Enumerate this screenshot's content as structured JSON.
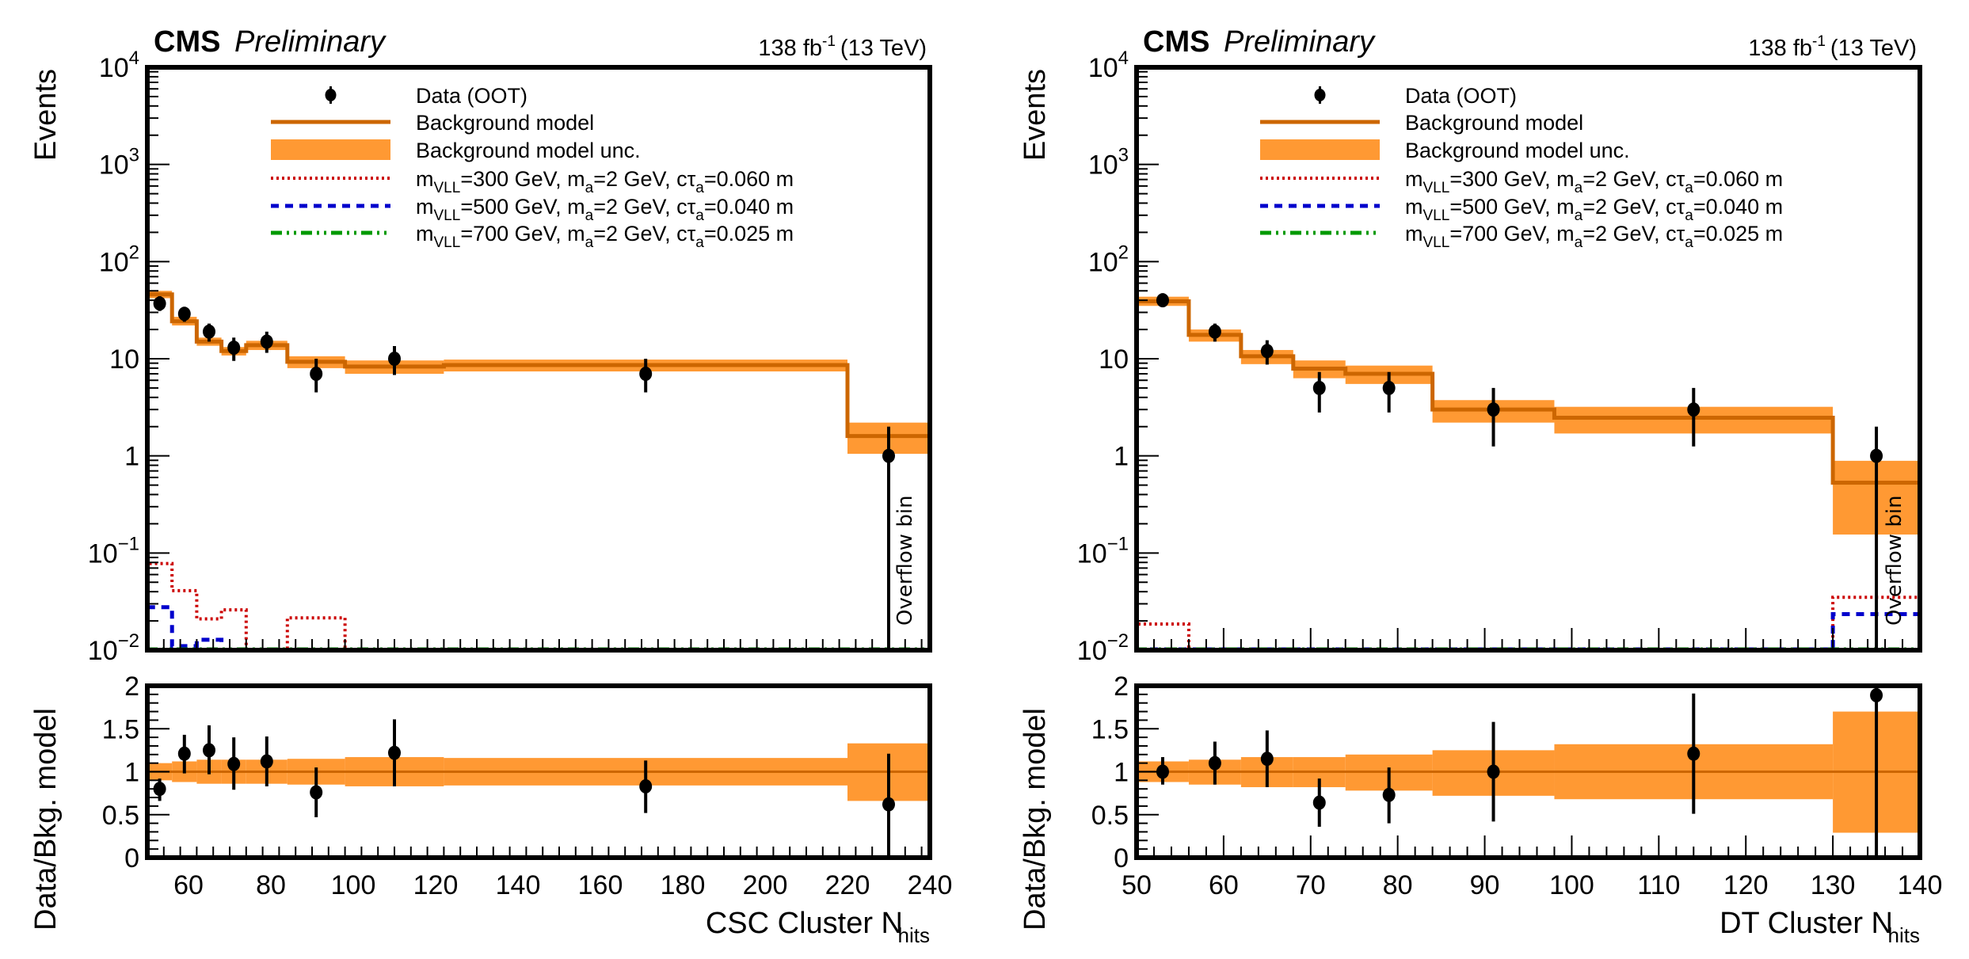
{
  "colors": {
    "background_line": "#cc6600",
    "background_band": "#ff9933",
    "data": "#000000",
    "signal_300": "#cc0000",
    "signal_500": "#0000cc",
    "signal_700": "#009900"
  },
  "chart_data": [
    {
      "type": "bar",
      "panel": "left",
      "experiment_label": "CMS",
      "status_label": "Preliminary",
      "lumi_label": "138 fb",
      "lumi_superscript": "-1",
      "energy_label": "(13 TeV)",
      "ylabel": "Events",
      "ratio_ylabel": "Data/Bkg. model",
      "xlabel": "CSC Cluster N",
      "xlabel_subscript": "hits",
      "xlim": [
        50,
        240
      ],
      "ylim": [
        0.01,
        10000
      ],
      "yscale": "log",
      "ratio_ylim": [
        0,
        2
      ],
      "x_ticks": [
        60,
        80,
        100,
        120,
        140,
        160,
        180,
        200,
        220,
        240
      ],
      "x_minor_step": 4,
      "ratio_y_ticks": [
        "0",
        "0.5",
        "1",
        "1.5",
        "2"
      ],
      "y_tick_labels": [
        {
          "value": 10000,
          "base": "10",
          "exp": "4"
        },
        {
          "value": 1000,
          "base": "10",
          "exp": "3"
        },
        {
          "value": 100,
          "base": "10",
          "exp": "2"
        },
        {
          "value": 10,
          "base": "10",
          "exp": ""
        },
        {
          "value": 1,
          "base": "1",
          "exp": ""
        },
        {
          "value": 0.1,
          "base": "10",
          "exp": "−1"
        },
        {
          "value": 0.01,
          "base": "10",
          "exp": "−2"
        }
      ],
      "overflow_label": "Overflow bin",
      "bin_edges": [
        50,
        56,
        62,
        68,
        74,
        84,
        98,
        122,
        220,
        240
      ],
      "background": [
        46,
        24.3,
        15,
        12,
        13.8,
        9.3,
        8.3,
        8.6,
        1.6
      ],
      "background_unc_low": [
        42,
        22,
        13.6,
        10.8,
        12.3,
        8.0,
        7.0,
        7.4,
        1.05
      ],
      "background_unc_high": [
        50,
        27,
        16.5,
        13.2,
        15.3,
        10.6,
        9.6,
        9.8,
        2.2
      ],
      "data": {
        "x": [
          53,
          59,
          65,
          71,
          79,
          91,
          110,
          171,
          230
        ],
        "y": [
          37,
          29,
          19,
          13,
          15,
          7,
          10,
          7,
          1
        ],
        "err_low": [
          31,
          24,
          15,
          9.5,
          11.5,
          4.5,
          6.8,
          4.5,
          0.01
        ],
        "err_high": [
          44,
          34,
          23,
          16.5,
          19,
          10,
          13.5,
          10,
          2
        ]
      },
      "ratio": {
        "band_low": [
          0.9,
          0.88,
          0.86,
          0.86,
          0.86,
          0.85,
          0.83,
          0.84,
          0.66
        ],
        "band_high": [
          1.1,
          1.12,
          1.14,
          1.14,
          1.14,
          1.15,
          1.17,
          1.16,
          1.33
        ],
        "x": [
          53,
          59,
          65,
          71,
          79,
          91,
          110,
          171,
          230
        ],
        "y": [
          0.8,
          1.21,
          1.25,
          1.09,
          1.12,
          0.76,
          1.22,
          0.83,
          0.62
        ],
        "err_low": [
          0.66,
          0.98,
          0.97,
          0.79,
          0.83,
          0.47,
          0.83,
          0.52,
          0.0
        ],
        "err_high": [
          0.92,
          1.43,
          1.54,
          1.4,
          1.41,
          1.05,
          1.61,
          1.13,
          1.21
        ]
      },
      "signals": [
        {
          "name": "300",
          "values": [
            0.078,
            0.041,
            0.021,
            0.026,
            0.01,
            0.0215,
            0.01,
            0.01,
            0.01
          ]
        },
        {
          "name": "500",
          "values": [
            0.0277,
            0.011,
            0.0128,
            0.01,
            0.01,
            0.01,
            0.01,
            0.01,
            0.01
          ]
        },
        {
          "name": "700",
          "values": [
            0.0102,
            0.0102,
            0.0102,
            0.0102,
            0.0102,
            0.0102,
            0.0102,
            0.0102,
            0.0102
          ]
        }
      ],
      "legend_position": "top-right"
    },
    {
      "type": "bar",
      "panel": "right",
      "experiment_label": "CMS",
      "status_label": "Preliminary",
      "lumi_label": "138 fb",
      "lumi_superscript": "-1",
      "energy_label": "(13 TeV)",
      "ylabel": "Events",
      "ratio_ylabel": "Data/Bkg. model",
      "xlabel": "DT Cluster N",
      "xlabel_subscript": "hits",
      "xlim": [
        50,
        140
      ],
      "ylim": [
        0.01,
        10000
      ],
      "yscale": "log",
      "ratio_ylim": [
        0,
        2
      ],
      "x_ticks": [
        50,
        60,
        70,
        80,
        90,
        100,
        110,
        120,
        130,
        140
      ],
      "x_minor_step": 2,
      "ratio_y_ticks": [
        "0",
        "0.5",
        "1",
        "1.5",
        "2"
      ],
      "y_tick_labels": [
        {
          "value": 10000,
          "base": "10",
          "exp": "4"
        },
        {
          "value": 1000,
          "base": "10",
          "exp": "3"
        },
        {
          "value": 100,
          "base": "10",
          "exp": "2"
        },
        {
          "value": 10,
          "base": "10",
          "exp": ""
        },
        {
          "value": 1,
          "base": "1",
          "exp": ""
        },
        {
          "value": 0.1,
          "base": "10",
          "exp": "−1"
        },
        {
          "value": 0.01,
          "base": "10",
          "exp": "−2"
        }
      ],
      "overflow_label": "Overflow bin",
      "bin_edges": [
        50,
        56,
        62,
        68,
        74,
        84,
        98,
        130,
        140
      ],
      "background": [
        39,
        17.6,
        10.6,
        7.9,
        7.0,
        3.0,
        2.47,
        0.53
      ],
      "background_unc_low": [
        35,
        15,
        8.8,
        6.3,
        5.5,
        2.2,
        1.7,
        0.155
      ],
      "background_unc_high": [
        43.5,
        20,
        12.3,
        9.6,
        8.5,
        3.75,
        3.2,
        0.89
      ],
      "data": {
        "x": [
          53,
          59,
          65,
          71,
          79,
          91,
          114,
          135
        ],
        "y": [
          40,
          19,
          12,
          5,
          5,
          3,
          3,
          1
        ],
        "err_low": [
          34,
          15,
          8.7,
          2.8,
          2.8,
          1.25,
          1.25,
          0.01
        ],
        "err_high": [
          46,
          23,
          15.5,
          7.3,
          7.3,
          5.0,
          5.0,
          2.0
        ]
      },
      "ratio": {
        "band_low": [
          0.88,
          0.85,
          0.82,
          0.82,
          0.78,
          0.72,
          0.68,
          0.29
        ],
        "band_high": [
          1.12,
          1.14,
          1.17,
          1.17,
          1.2,
          1.25,
          1.32,
          1.7
        ],
        "x": [
          53,
          59,
          65,
          71,
          79,
          91,
          114,
          135
        ],
        "y": [
          1.0,
          1.1,
          1.15,
          0.64,
          0.73,
          1.0,
          1.21,
          1.89
        ],
        "err_low": [
          0.85,
          0.85,
          0.82,
          0.36,
          0.4,
          0.42,
          0.51,
          0.0
        ],
        "err_high": [
          1.17,
          1.35,
          1.48,
          0.92,
          1.05,
          1.58,
          1.91,
          2.0
        ]
      },
      "signals": [
        {
          "name": "300",
          "values": [
            0.0186,
            0.0102,
            0.0102,
            0.0102,
            0.0102,
            0.0102,
            0.0102,
            0.035
          ]
        },
        {
          "name": "500",
          "values": [
            0.0102,
            0.0102,
            0.0102,
            0.0102,
            0.0102,
            0.0102,
            0.0102,
            0.0235
          ]
        },
        {
          "name": "700",
          "values": [
            0.0102,
            0.0102,
            0.0102,
            0.0102,
            0.0102,
            0.0102,
            0.0102,
            0.0102
          ]
        }
      ],
      "legend_position": "top-right"
    }
  ],
  "legend": [
    {
      "key": "data",
      "label": "Data (OOT)"
    },
    {
      "key": "bkg",
      "label": "Background model"
    },
    {
      "key": "unc",
      "label": "Background model unc."
    },
    {
      "key": "sig300",
      "m_label": "m",
      "m_sub": "VLL",
      "m_value": "=300 GeV, m",
      "ma_sub": "a",
      "ma_value": "=2 GeV, cτ",
      "ct_sub": "a",
      "ct_value": "=0.060 m"
    },
    {
      "key": "sig500",
      "m_label": "m",
      "m_sub": "VLL",
      "m_value": "=500 GeV, m",
      "ma_sub": "a",
      "ma_value": "=2 GeV, cτ",
      "ct_sub": "a",
      "ct_value": "=0.040 m"
    },
    {
      "key": "sig700",
      "m_label": "m",
      "m_sub": "VLL",
      "m_value": "=700 GeV, m",
      "ma_sub": "a",
      "ma_value": "=2 GeV, cτ",
      "ct_sub": "a",
      "ct_value": "=0.025 m"
    }
  ]
}
